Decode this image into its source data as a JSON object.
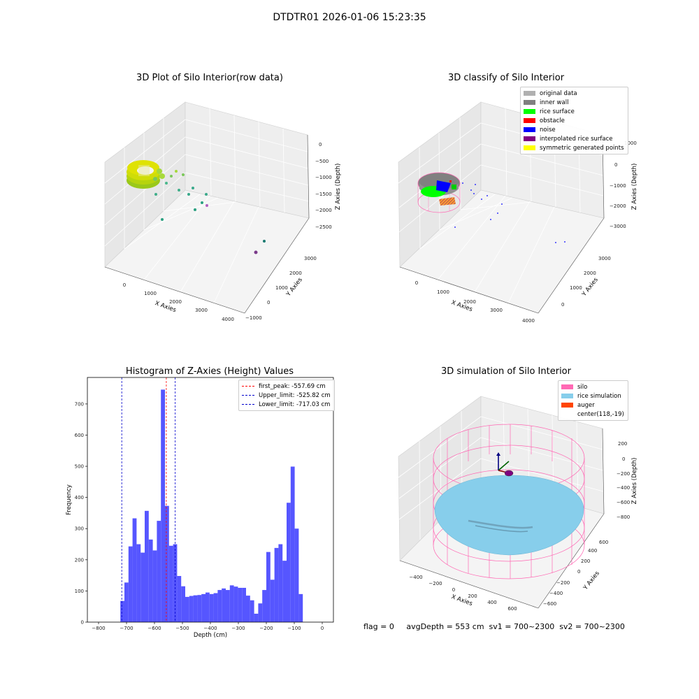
{
  "figure": {
    "suptitle": "DTDTR01 2026-01-06 15:23:35",
    "status_text": "flag = 0     avgDepth = 553 cm  sv1 = 700~2300  sv2 = 700~2300"
  },
  "panel_raw": {
    "title": "3D Plot of Silo Interior(row data)",
    "xlabel": "X Axies",
    "ylabel": "Y Axies",
    "zlabel": "Z Axies (Depth)",
    "xticks": [
      "0",
      "1000",
      "2000",
      "3000",
      "4000"
    ],
    "yticks": [
      "−1000",
      "0",
      "1000",
      "2000",
      "3000"
    ],
    "zticks": [
      "0",
      "−500",
      "−1000",
      "−1500",
      "−2000",
      "−2500"
    ]
  },
  "panel_classify": {
    "title": "3D classify of Silo Interior",
    "xlabel": "X Axies",
    "ylabel": "Y Axies",
    "zlabel": "Z Axies (Depth)",
    "xticks": [
      "0",
      "1000",
      "2000",
      "3000",
      "4000"
    ],
    "yticks": [
      "0",
      "1000",
      "2000",
      "3000"
    ],
    "zticks": [
      "1000",
      "0",
      "−1000",
      "−2000",
      "−3000"
    ],
    "legend": [
      {
        "label": "original data",
        "color": "#b0b0b0"
      },
      {
        "label": "inner wall",
        "color": "#808080"
      },
      {
        "label": "rice surface",
        "color": "#00ff00"
      },
      {
        "label": "obstacle",
        "color": "#ff0000"
      },
      {
        "label": "noise",
        "color": "#0000ff"
      },
      {
        "label": "interpolated rice surface",
        "color": "#800080"
      },
      {
        "label": "symmetric generated points",
        "color": "#ffff00"
      }
    ]
  },
  "panel_sim": {
    "title": "3D simulation of Silo Interior",
    "xlabel": "X Axies",
    "ylabel": "Y Axies",
    "zlabel": "Z Axies (Depth)",
    "xticks": [
      "−400",
      "−200",
      "0",
      "200",
      "400",
      "600"
    ],
    "yticks": [
      "−600",
      "−400",
      "−200",
      "0",
      "200",
      "400",
      "600"
    ],
    "zticks": [
      "200",
      "0",
      "−200",
      "−400",
      "−600",
      "−800"
    ],
    "legend": [
      {
        "label": "silo",
        "color": "#ff69b4"
      },
      {
        "label": "rice simulation",
        "color": "#87ceeb"
      },
      {
        "label": "auger",
        "color": "#ff4500"
      },
      {
        "label": "center(118,-19)",
        "color": ""
      }
    ]
  },
  "chart_data": {
    "type": "bar",
    "title": "Histogram of Z-Axies (Height) Values",
    "xlabel": "Depth (cm)",
    "ylabel": "Frequency",
    "xlim": [
      -840,
      40
    ],
    "ylim": [
      0,
      785
    ],
    "xticks": [
      -800,
      -700,
      -600,
      -500,
      -400,
      -300,
      -200,
      -100,
      0
    ],
    "yticks": [
      0,
      100,
      200,
      300,
      400,
      500,
      600,
      700
    ],
    "bin_start": -722,
    "bin_width": 14.5,
    "bar_color": "#4444ff",
    "values": [
      68,
      127,
      243,
      333,
      250,
      223,
      357,
      265,
      230,
      325,
      746,
      373,
      245,
      250,
      148,
      115,
      81,
      84,
      86,
      87,
      90,
      95,
      90,
      93,
      103,
      108,
      103,
      118,
      114,
      110,
      110,
      85,
      70,
      27,
      60,
      103,
      225,
      136,
      238,
      250,
      197,
      383,
      499,
      300,
      90
    ],
    "vlines": [
      {
        "label": "first_peak: -557.69 cm",
        "x": -557.69,
        "color": "#ff0000"
      },
      {
        "label": "Upper_limit: -525.82 cm",
        "x": -525.82,
        "color": "#0000cc"
      },
      {
        "label": "Lower_limit: -717.03 cm",
        "x": -717.03,
        "color": "#0000cc"
      }
    ],
    "legend_position": "top-right"
  }
}
